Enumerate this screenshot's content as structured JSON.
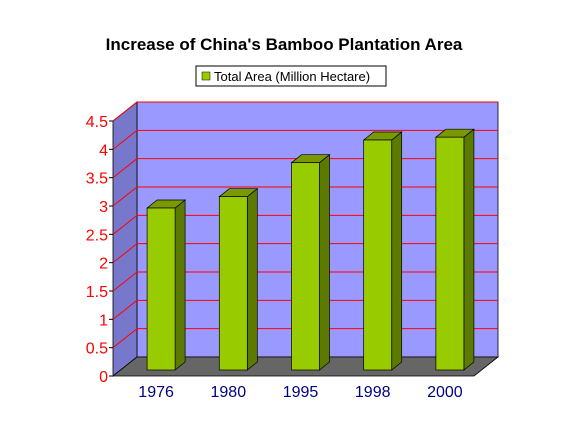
{
  "chart_data": {
    "type": "bar",
    "title": "Increase of China's Bamboo Plantation Area",
    "xlabel": "",
    "ylabel": "",
    "categories": [
      "1976",
      "1980",
      "1995",
      "1998",
      "2000"
    ],
    "series": [
      {
        "name": "Total Area (Million Hectare)",
        "values": [
          3.0,
          3.2,
          3.8,
          4.2,
          4.25
        ]
      }
    ],
    "ylim": [
      0,
      4.5
    ],
    "yticks": [
      "0",
      "0.5",
      "1",
      "1.5",
      "2",
      "2.5",
      "3",
      "3.5",
      "4",
      "4.5"
    ],
    "grid": true,
    "legend_position": "top-center",
    "colors": {
      "bar_front": "#99cc00",
      "bar_side": "#5c7a00",
      "bar_top": "#7a9900",
      "plot_back": "#9999ff",
      "plot_side": "#7777cc",
      "floor": "#666666",
      "gridline": "#ff0000",
      "ytick_text": "#ff0000",
      "xtick_text": "#000080"
    }
  }
}
